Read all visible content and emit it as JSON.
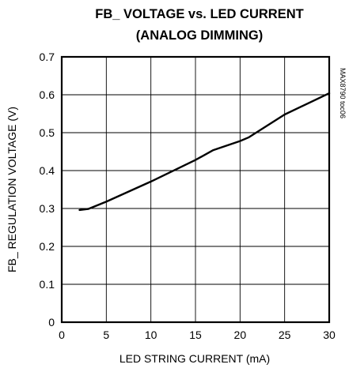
{
  "chart_data": {
    "type": "line",
    "title": "FB_ VOLTAGE vs. LED CURRENT",
    "subtitle": "(ANALOG DIMMING)",
    "xlabel": "LED STRING CURRENT (mA)",
    "ylabel": "FB_ REGULATION VOLTAGE (V)",
    "side_note": "MAX8790 toc06",
    "xlim": [
      0,
      30
    ],
    "ylim": [
      0,
      0.7
    ],
    "x_ticks": [
      0,
      5,
      10,
      15,
      20,
      25,
      30
    ],
    "x_tick_labels": [
      "0",
      "5",
      "10",
      "15",
      "20",
      "25",
      "30"
    ],
    "y_ticks": [
      0,
      0.1,
      0.2,
      0.3,
      0.4,
      0.5,
      0.6,
      0.7
    ],
    "y_tick_labels": [
      "0",
      "0.1",
      "0.2",
      "0.3",
      "0.4",
      "0.5",
      "0.6",
      "0.7"
    ],
    "grid": true,
    "series": [
      {
        "x": [
          2,
          3,
          5,
          10,
          15,
          17,
          20,
          21,
          25,
          30
        ],
        "y": [
          0.296,
          0.299,
          0.318,
          0.371,
          0.428,
          0.454,
          0.478,
          0.488,
          0.548,
          0.604
        ]
      }
    ]
  }
}
